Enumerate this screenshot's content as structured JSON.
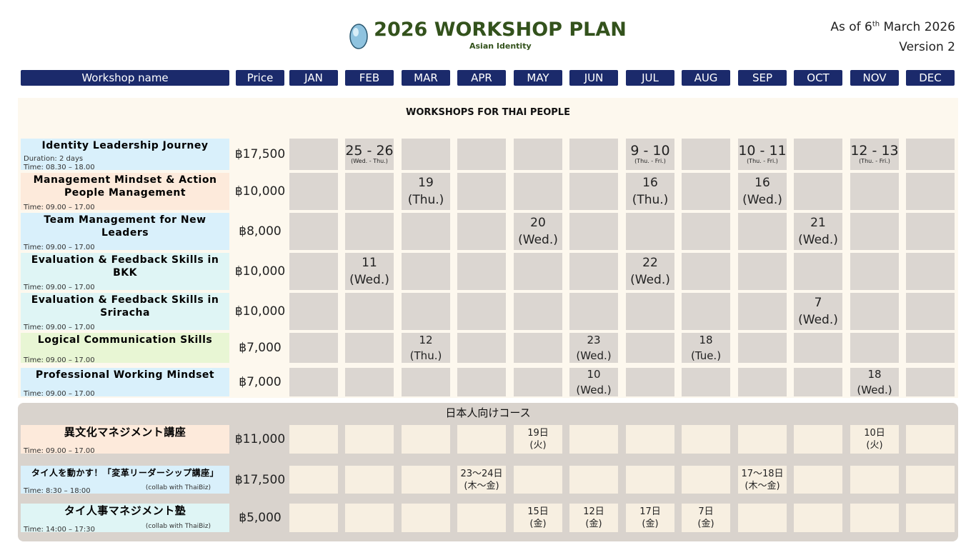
{
  "header": {
    "title": "2026 WORKSHOP PLAN",
    "subtitle": "Asian Identity",
    "as_of": {
      "prefix": "As of 6",
      "sup": "th",
      "suffix": " March 2026"
    },
    "version": "Version 2"
  },
  "columns": {
    "name": "Workshop name",
    "price": "Price",
    "months": [
      "JAN",
      "FEB",
      "MAR",
      "APR",
      "MAY",
      "JUN",
      "JUL",
      "AUG",
      "SEP",
      "OCT",
      "NOV",
      "DEC"
    ]
  },
  "sections": [
    {
      "title": "WORKSHOPS FOR THAI PEOPLE",
      "rows": [
        {
          "name": "Identity Leadership Journey",
          "color": "#d9f0fb",
          "details": [
            "Duration: 2 days",
            "Time: 08.30 – 18.00"
          ],
          "price": "฿17,500",
          "cells": [
            null,
            {
              "date": "25 - 26",
              "day": "(Wed. - Thu.)"
            },
            null,
            null,
            null,
            null,
            {
              "date": "9 - 10",
              "day": "(Thu. - Fri.)"
            },
            null,
            {
              "date": "10 - 11",
              "day": "(Thu. - Fri.)"
            },
            null,
            {
              "date": "12 - 13",
              "day": "(Thu. - Fri.)"
            },
            null
          ]
        },
        {
          "name": "Management Mindset & Action People Management",
          "color": "#fdeadb",
          "details": [
            "Time: 09.00 – 17.00"
          ],
          "price": "฿10,000",
          "cells": [
            null,
            null,
            {
              "date": "19",
              "day": "(Thu.)"
            },
            null,
            null,
            null,
            {
              "date": "16",
              "day": "(Thu.)"
            },
            null,
            {
              "date": "16",
              "day": "(Wed.)"
            },
            null,
            null,
            null
          ]
        },
        {
          "name": "Team Management for New Leaders",
          "color": "#d9f0fb",
          "details": [
            "Time: 09.00 – 17.00"
          ],
          "price": "฿8,000",
          "cells": [
            null,
            null,
            null,
            null,
            {
              "date": "20",
              "day": "(Wed.)"
            },
            null,
            null,
            null,
            null,
            {
              "date": "21",
              "day": "(Wed.)"
            },
            null,
            null
          ]
        },
        {
          "name": "Evaluation & Feedback Skills in BKK",
          "color": "#dff5f5",
          "details": [
            "Time: 09.00 – 17.00"
          ],
          "price": "฿10,000",
          "cells": [
            null,
            {
              "date": "11",
              "day": "(Wed.)"
            },
            null,
            null,
            null,
            null,
            {
              "date": "22",
              "day": "(Wed.)"
            },
            null,
            null,
            null,
            null,
            null
          ]
        },
        {
          "name": "Evaluation & Feedback Skills in Sriracha",
          "color": "#dff5f5",
          "details": [
            "Time: 09.00 – 17.00"
          ],
          "price": "฿10,000",
          "cells": [
            null,
            null,
            null,
            null,
            null,
            null,
            null,
            null,
            null,
            {
              "date": "7",
              "day": "(Wed.)"
            },
            null,
            null
          ]
        },
        {
          "name": "Logical Communication Skills",
          "color": "#e8f6d4",
          "details": [
            "Time: 09.00 – 17.00"
          ],
          "price": "฿7,000",
          "cells": [
            null,
            null,
            {
              "date": "12",
              "day": "(Thu.)"
            },
            null,
            null,
            {
              "date": "23",
              "day": "(Wed.)"
            },
            null,
            {
              "date": "18",
              "day": "(Tue.)"
            },
            null,
            null,
            null,
            null
          ]
        },
        {
          "name": "Professional Working Mindset",
          "color": "#d9f0fb",
          "details": [
            "Time: 09.00 – 17.00"
          ],
          "price": "฿7,000",
          "cells": [
            null,
            null,
            null,
            null,
            null,
            {
              "date": "10",
              "day": "(Wed.)"
            },
            null,
            null,
            null,
            null,
            {
              "date": "18",
              "day": "(Wed.)"
            },
            null
          ]
        }
      ]
    },
    {
      "title": "日本人向けコース",
      "rows": [
        {
          "name": "異文化マネジメント講座",
          "color": "#fdeadb",
          "details": [
            "Time: 09.00 – 17.00"
          ],
          "price": "฿11,000",
          "cells": [
            null,
            null,
            null,
            null,
            {
              "date": "19日",
              "day": "(火)"
            },
            null,
            null,
            null,
            null,
            null,
            {
              "date": "10日",
              "day": "(火)"
            },
            null
          ]
        },
        {
          "name": "タイ人を動かす！「変革リーダーシップ講座」",
          "color": "#d9f0fb",
          "details": [
            "Time: 8:30 – 18:00"
          ],
          "note": "(collab with ThaiBiz)",
          "price": "฿17,500",
          "cells": [
            null,
            null,
            null,
            {
              "date": "23〜24日",
              "day": "(木〜金)"
            },
            null,
            null,
            null,
            null,
            {
              "date": "17〜18日",
              "day": "(木〜金)"
            },
            null,
            null,
            null
          ]
        },
        {
          "name": "タイ人事マネジメント塾",
          "color": "#dff5f5",
          "details": [
            "Time: 14:00 – 17:30"
          ],
          "note": "(collab with ThaiBiz)",
          "price": "฿5,000",
          "cells": [
            null,
            null,
            null,
            null,
            {
              "date": "15日",
              "day": "(金)"
            },
            {
              "date": "12日",
              "day": "(金)"
            },
            {
              "date": "17日",
              "day": "(金)"
            },
            {
              "date": "7日",
              "day": "(金)"
            },
            null,
            null,
            null,
            null
          ]
        }
      ]
    }
  ]
}
